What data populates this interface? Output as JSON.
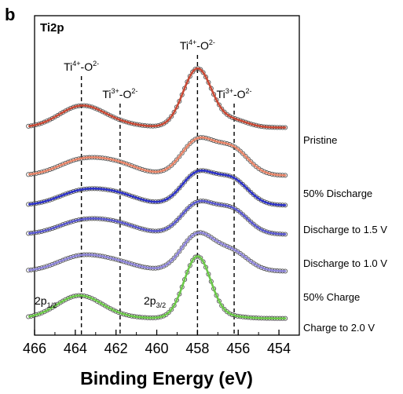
{
  "panel_label": "b",
  "chart_data": {
    "type": "line",
    "title": "Ti2p",
    "xlabel": "Binding Energy (eV)",
    "ylabel": "",
    "xlim": [
      466,
      453
    ],
    "x_reversed": true,
    "x_ticks": [
      466,
      464,
      462,
      460,
      458,
      456,
      454
    ],
    "y_ticks": false,
    "grid": false,
    "legend_placement": "right of each curve",
    "reference_lines": [
      {
        "x": 463.7,
        "label_main": "Ti",
        "label_sup1": "4+",
        "label_mid": "-O",
        "label_sup2": "2-"
      },
      {
        "x": 461.8,
        "label_main": "Ti",
        "label_sup1": "3+",
        "label_mid": "-O",
        "label_sup2": "2-"
      },
      {
        "x": 458.0,
        "label_main": "Ti",
        "label_sup1": "4+",
        "label_mid": "-O",
        "label_sup2": "2-"
      },
      {
        "x": 456.2,
        "label_main": "Ti",
        "label_sup1": "3+",
        "label_mid": "-O",
        "label_sup2": "2-"
      }
    ],
    "peak_labels": [
      {
        "x": 464.0,
        "main": "2p",
        "sub": "1/2"
      },
      {
        "x": 459.3,
        "main": "2p",
        "sub": "3/2"
      }
    ],
    "series": [
      {
        "name": "Pristine",
        "color": "#c84a36",
        "baseline": 0.1,
        "p1_32": {
          "c": 458.0,
          "a": 1.0,
          "w": 0.7
        },
        "p2_32": {
          "c": 456.2,
          "a": 0.12,
          "w": 0.7
        },
        "p1_12": {
          "c": 463.7,
          "a": 0.36,
          "w": 1.1
        },
        "p2_12": {
          "c": 461.9,
          "a": 0.05,
          "w": 1.1
        }
      },
      {
        "name": "50% Discharge",
        "color": "#e8866a",
        "baseline": 0.08,
        "p1_32": {
          "c": 458.0,
          "a": 0.55,
          "w": 0.8
        },
        "p2_32": {
          "c": 456.3,
          "a": 0.42,
          "w": 0.8
        },
        "p1_12": {
          "c": 463.8,
          "a": 0.22,
          "w": 1.1
        },
        "p2_12": {
          "c": 462.0,
          "a": 0.18,
          "w": 1.1
        }
      },
      {
        "name": "Discharge to 1.5 V",
        "color": "#2e33c8",
        "baseline": 0.08,
        "p1_32": {
          "c": 458.0,
          "a": 0.5,
          "w": 0.8
        },
        "p2_32": {
          "c": 456.3,
          "a": 0.4,
          "w": 0.8
        },
        "p1_12": {
          "c": 463.8,
          "a": 0.2,
          "w": 1.1
        },
        "p2_12": {
          "c": 462.0,
          "a": 0.17,
          "w": 1.1
        }
      },
      {
        "name": "Discharge to 1.0 V",
        "color": "#5b5ad0",
        "baseline": 0.08,
        "p1_32": {
          "c": 458.0,
          "a": 0.48,
          "w": 0.8
        },
        "p2_32": {
          "c": 456.3,
          "a": 0.38,
          "w": 0.8
        },
        "p1_12": {
          "c": 463.8,
          "a": 0.19,
          "w": 1.1
        },
        "p2_12": {
          "c": 462.0,
          "a": 0.16,
          "w": 1.1
        }
      },
      {
        "name": "50% Charge",
        "color": "#8e86d8",
        "baseline": 0.08,
        "p1_32": {
          "c": 458.0,
          "a": 0.58,
          "w": 0.8
        },
        "p2_32": {
          "c": 456.3,
          "a": 0.3,
          "w": 0.8
        },
        "p1_12": {
          "c": 463.8,
          "a": 0.22,
          "w": 1.1
        },
        "p2_12": {
          "c": 462.0,
          "a": 0.13,
          "w": 1.1
        }
      },
      {
        "name": "Charge to 2.0 V",
        "color": "#6cc84a",
        "baseline": 0.06,
        "p1_32": {
          "c": 458.0,
          "a": 1.1,
          "w": 0.65
        },
        "p2_32": {
          "c": 456.2,
          "a": 0.03,
          "w": 0.65
        },
        "p1_12": {
          "c": 463.8,
          "a": 0.4,
          "w": 1.1
        },
        "p2_12": {
          "c": 462.0,
          "a": 0.02,
          "w": 1.1
        }
      }
    ]
  }
}
